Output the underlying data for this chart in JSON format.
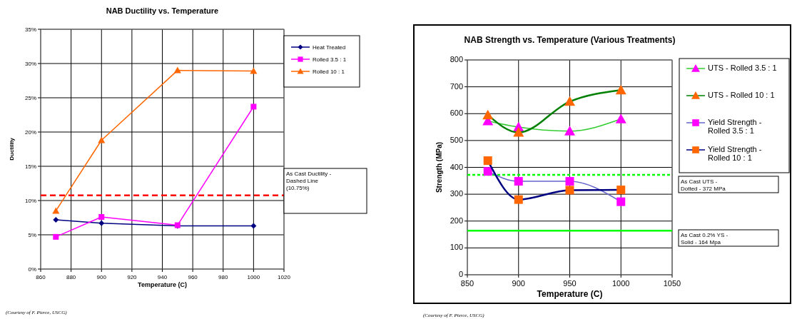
{
  "chart_data": [
    {
      "type": "line",
      "title": "NAB Ductility vs. Temperature",
      "xlabel": "Temperature (C)",
      "ylabel": "Ductility",
      "xlim": [
        860,
        1020
      ],
      "xticks": [
        860,
        880,
        900,
        920,
        940,
        960,
        980,
        1000,
        1020
      ],
      "ylim": [
        0,
        35
      ],
      "yticks": [
        {
          "value": 0,
          "label": "0%"
        },
        {
          "value": 5,
          "label": "5%"
        },
        {
          "value": 10,
          "label": "10%"
        },
        {
          "value": 15,
          "label": "15%"
        },
        {
          "value": 20,
          "label": "20%"
        },
        {
          "value": 25,
          "label": "25%"
        },
        {
          "value": 30,
          "label": "30%"
        },
        {
          "value": 35,
          "label": "35%"
        }
      ],
      "grid": true,
      "legend": "top right",
      "x": [
        870,
        900,
        950,
        1000
      ],
      "series": [
        {
          "name": "Heat Treated",
          "color": "#000080",
          "marker": "diamond",
          "values": [
            7.2,
            6.7,
            6.3,
            6.3
          ]
        },
        {
          "name": "Rolled 3.5 : 1",
          "color": "#ff00ff",
          "marker": "square",
          "values": [
            4.7,
            7.6,
            6.4,
            23.7
          ]
        },
        {
          "name": "Rolled 10 : 1",
          "color": "#ff6600",
          "marker": "triangle",
          "values": [
            8.5,
            18.8,
            29.0,
            28.9
          ]
        }
      ],
      "ref_lines": [
        {
          "axis": "y",
          "value": 10.75,
          "label": "As Cast Ductility - Dashed Line (10.75%)",
          "color": "#ff0000",
          "line_style": "dashed"
        }
      ],
      "annotations": [
        "(Courtesy of F. Pierce, USCG)"
      ]
    },
    {
      "type": "line",
      "title": "NAB Strength vs. Temperature (Various Treatments)",
      "xlabel": "Temperature (C)",
      "ylabel": "Strength (MPa)",
      "xlim": [
        850,
        1050
      ],
      "xticks": [
        850,
        900,
        950,
        1000,
        1050
      ],
      "ylim": [
        0,
        800
      ],
      "yticks": [
        0,
        100,
        200,
        300,
        400,
        500,
        600,
        700,
        800
      ],
      "grid": true,
      "legend": "right",
      "x": [
        870,
        900,
        950,
        1000
      ],
      "series": [
        {
          "name": "UTS - Rolled 3.5 : 1",
          "color": "#33cc33",
          "colors": [
            "#ff00ff",
            "#ff00ff",
            "#ff00ff",
            "#ff00ff"
          ],
          "marker": "triangle",
          "values": [
            573,
            550,
            535,
            580
          ]
        },
        {
          "name": "UTS - Rolled 10 : 1",
          "color": "#008000",
          "colors": [
            "#ff6600",
            "#ff6600",
            "#ff6600",
            "#ff6600"
          ],
          "marker": "triangle",
          "values": [
            595,
            530,
            645,
            688
          ]
        },
        {
          "name": "Yield Strength - Rolled 3.5 : 1",
          "color": "#6666cc",
          "colors": [
            "#ff00ff",
            "#ff00ff",
            "#ff00ff",
            "#ff00ff"
          ],
          "marker": "square",
          "values": [
            385,
            348,
            348,
            272
          ]
        },
        {
          "name": "Yield Strength - Rolled 10 : 1",
          "color": "#000080",
          "colors": [
            "#ff6600",
            "#ff6600",
            "#ff6600",
            "#ff6600"
          ],
          "marker": "square",
          "values": [
            425,
            280,
            315,
            316
          ]
        }
      ],
      "ref_lines": [
        {
          "axis": "y",
          "value": 372,
          "label": "As Cast UTS - Dotted  - 372 MPa",
          "color": "#00ff00",
          "line_style": "dotted"
        },
        {
          "axis": "y",
          "value": 164,
          "label": "As Cast 0.2% YS - Solid - 164 Mpa",
          "color": "#00ff00",
          "line_style": "solid"
        }
      ],
      "annotations": [
        "(Courtesy of F. Pierce, USCG)"
      ]
    }
  ]
}
